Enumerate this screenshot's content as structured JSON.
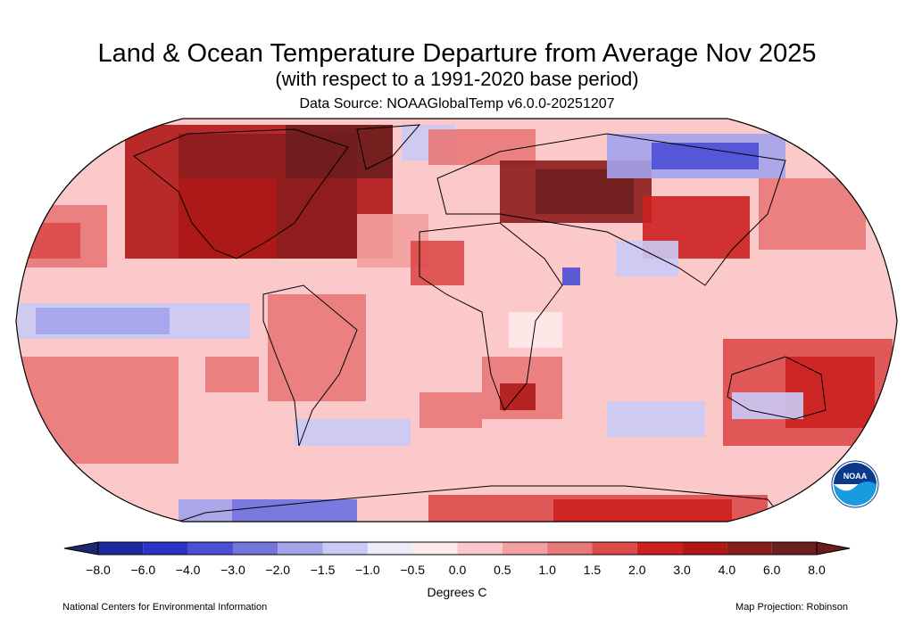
{
  "header": {
    "title": "Land & Ocean Temperature Departure from Average Nov 2025",
    "subtitle": "(with respect to a 1991-2020 base period)",
    "source": "Data Source: NOAAGlobalTemp v6.0.0-20251207"
  },
  "map": {
    "projection_label": "Map Projection: Robinson",
    "logo_text": "NOAA"
  },
  "colorbar": {
    "ticks": [
      "−8.0",
      "−6.0",
      "−4.0",
      "−3.0",
      "−2.0",
      "−1.5",
      "−1.0",
      "−0.5",
      "0.0",
      "0.5",
      "1.0",
      "1.5",
      "2.0",
      "3.0",
      "4.0",
      "6.0",
      "8.0"
    ],
    "colors": [
      "#1c2a9e",
      "#2a35c8",
      "#4a4fd6",
      "#7474de",
      "#a3a3ec",
      "#cacaf6",
      "#ececfc",
      "#fdeaea",
      "#fbc9c9",
      "#f4a0a0",
      "#e87878",
      "#dd4a4a",
      "#cc2020",
      "#b01818",
      "#8c1c1c",
      "#6e1e1e"
    ],
    "under_color": "#1f2670",
    "over_color": "#6a1b1b",
    "units": "Degrees C"
  },
  "footer": {
    "left": "National Centers for Environmental Information",
    "right": "Map Projection: Robinson"
  }
}
